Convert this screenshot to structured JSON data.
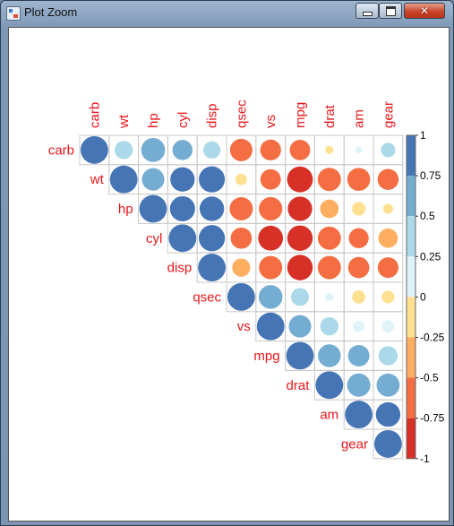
{
  "window": {
    "title": "Plot Zoom"
  },
  "chart_data": {
    "type": "heatmap",
    "shape": "circle",
    "layout": "upper-triangle",
    "variables": [
      "carb",
      "wt",
      "hp",
      "cyl",
      "disp",
      "qsec",
      "vs",
      "mpg",
      "drat",
      "am",
      "gear"
    ],
    "matrix": [
      [
        1.0,
        0.43,
        0.75,
        0.53,
        0.39,
        -0.66,
        -0.57,
        -0.55,
        -0.09,
        0.06,
        0.27
      ],
      [
        0.43,
        1.0,
        0.66,
        0.78,
        0.89,
        -0.17,
        -0.55,
        -0.87,
        -0.71,
        -0.69,
        -0.58
      ],
      [
        0.75,
        0.66,
        1.0,
        0.83,
        0.79,
        -0.71,
        -0.72,
        -0.78,
        -0.45,
        -0.24,
        -0.13
      ],
      [
        0.53,
        0.78,
        0.83,
        1.0,
        0.9,
        -0.59,
        -0.81,
        -0.85,
        -0.7,
        -0.52,
        -0.49
      ],
      [
        0.39,
        0.89,
        0.79,
        0.9,
        1.0,
        -0.43,
        -0.71,
        -0.85,
        -0.71,
        -0.59,
        -0.56
      ],
      [
        -0.66,
        -0.17,
        -0.71,
        -0.59,
        -0.43,
        1.0,
        0.74,
        0.42,
        0.09,
        -0.23,
        -0.21
      ],
      [
        -0.57,
        -0.55,
        -0.72,
        -0.81,
        -0.71,
        0.74,
        1.0,
        0.66,
        0.44,
        0.17,
        0.21
      ],
      [
        -0.55,
        -0.87,
        -0.78,
        -0.85,
        -0.85,
        0.42,
        0.66,
        1.0,
        0.68,
        0.6,
        0.48
      ],
      [
        -0.09,
        -0.71,
        -0.45,
        -0.7,
        -0.71,
        0.09,
        0.44,
        0.68,
        1.0,
        0.71,
        0.7
      ],
      [
        0.06,
        -0.69,
        -0.24,
        -0.52,
        -0.59,
        -0.23,
        0.17,
        0.6,
        0.71,
        1.0,
        0.79
      ],
      [
        0.27,
        -0.58,
        -0.13,
        -0.49,
        -0.56,
        -0.21,
        0.21,
        0.48,
        0.7,
        0.79,
        1.0
      ]
    ],
    "colorbar": {
      "range": [
        -1,
        1
      ],
      "tick_labels": [
        "1",
        "0.75",
        "0.5",
        "0.25",
        "0",
        "-0.25",
        "-0.5",
        "-0.75",
        "-1"
      ],
      "colors": [
        "#4575b4",
        "#74add1",
        "#abd9e9",
        "#e0f3f8",
        "#fee090",
        "#fdae61",
        "#f46d43",
        "#d73027"
      ]
    },
    "label_color": "#e8161b"
  }
}
